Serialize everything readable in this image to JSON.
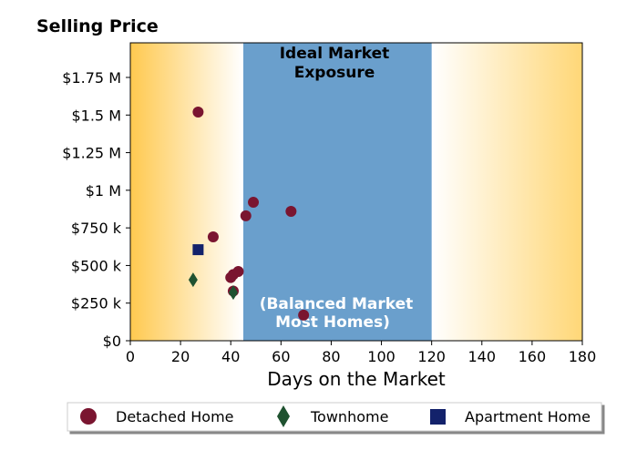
{
  "chart_data": {
    "type": "scatter",
    "title": "Selling Price",
    "xlabel": "Days on the Market",
    "ylabel": "",
    "xlim": [
      0,
      180
    ],
    "ylim": [
      0,
      1980000
    ],
    "x_ticks": [
      0,
      20,
      40,
      60,
      80,
      100,
      120,
      140,
      160,
      180
    ],
    "x_tick_labels": [
      "0",
      "20",
      "40",
      "60",
      "80",
      "100",
      "120",
      "140",
      "160",
      "180"
    ],
    "y_ticks": [
      0,
      250000,
      500000,
      750000,
      1000000,
      1250000,
      1500000,
      1750000
    ],
    "y_tick_labels": [
      "$0",
      "$250 k",
      "$500 k",
      "$750 k",
      "$1 M",
      "$1.25 M",
      "$1.5 M",
      "$1.75 M"
    ],
    "grid": false,
    "background": "gradient orange at edges fading to white near the shaded band",
    "shaded_band": {
      "x_range": [
        45,
        120
      ],
      "color": "#6a9fcc"
    },
    "annotations": {
      "top": [
        "Ideal Market",
        "Exposure"
      ],
      "bottom": [
        "(Balanced Market",
        "Most Homes)"
      ]
    },
    "legend_position": "bottom",
    "series": [
      {
        "name": "Detached Home",
        "marker": "circle",
        "color": "#7a1530",
        "points": [
          {
            "x": 27,
            "y": 1520000
          },
          {
            "x": 33,
            "y": 690000
          },
          {
            "x": 40,
            "y": 420000
          },
          {
            "x": 41,
            "y": 440000
          },
          {
            "x": 41,
            "y": 330000
          },
          {
            "x": 43,
            "y": 460000
          },
          {
            "x": 46,
            "y": 830000
          },
          {
            "x": 49,
            "y": 920000
          },
          {
            "x": 64,
            "y": 860000
          },
          {
            "x": 69,
            "y": 170000
          }
        ]
      },
      {
        "name": "Townhome",
        "marker": "diamond",
        "color": "#1f5230",
        "points": [
          {
            "x": 25,
            "y": 405000
          },
          {
            "x": 41,
            "y": 320000
          }
        ]
      },
      {
        "name": "Apartment Home",
        "marker": "square",
        "color": "#13226b",
        "points": [
          {
            "x": 27,
            "y": 605000
          }
        ]
      }
    ]
  }
}
